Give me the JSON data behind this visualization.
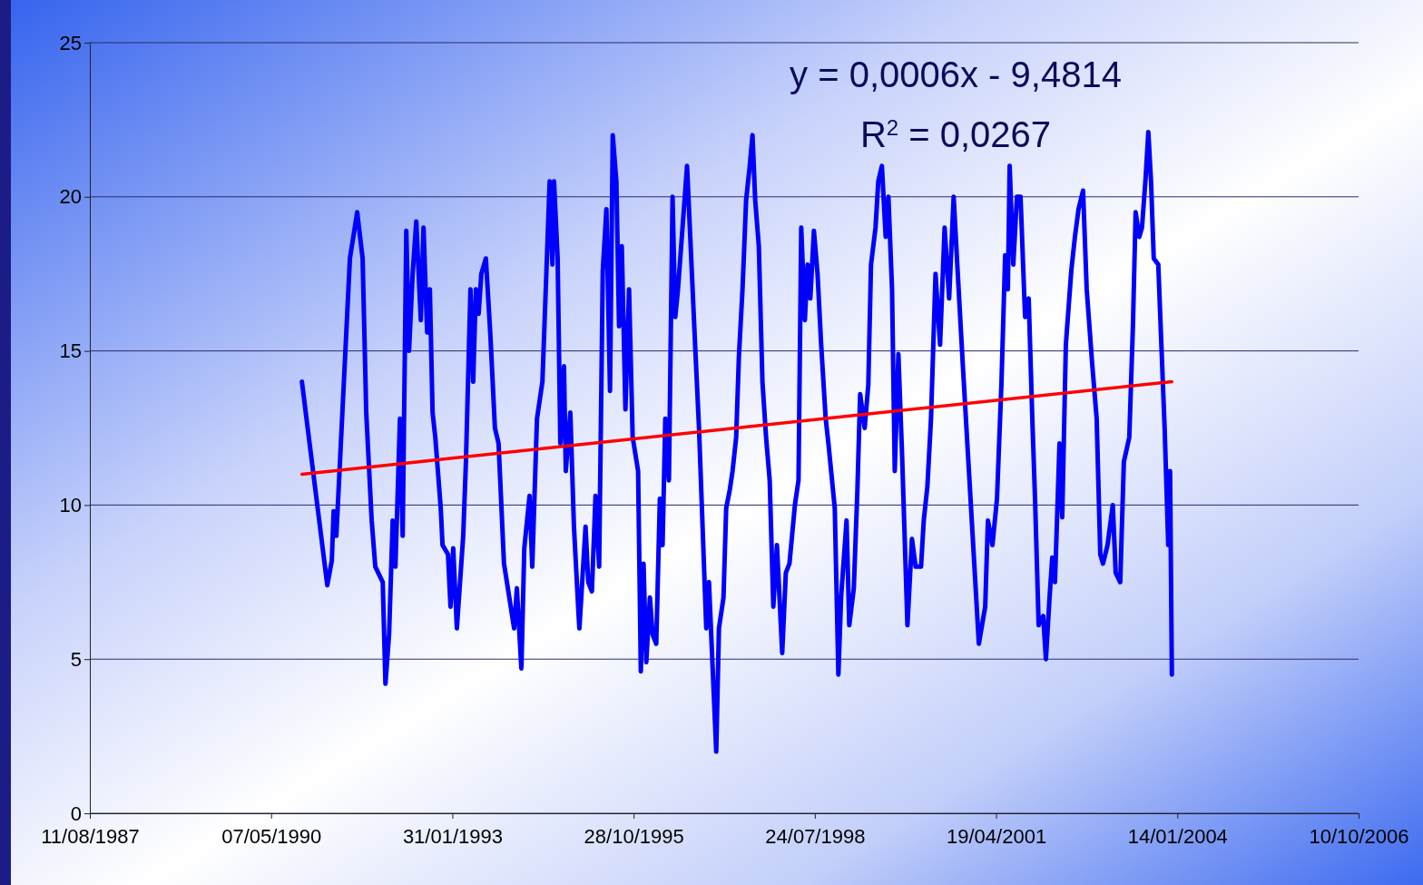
{
  "chart_data": {
    "type": "line",
    "xlim": [
      "1987-08-11",
      "2006-10-10"
    ],
    "xticks": [
      {
        "value": "1987-08-11",
        "label": "11/08/1987"
      },
      {
        "value": "1990-05-07",
        "label": "07/05/1990"
      },
      {
        "value": "1993-01-31",
        "label": "31/01/1993"
      },
      {
        "value": "1995-10-28",
        "label": "28/10/1995"
      },
      {
        "value": "1998-07-24",
        "label": "24/07/1998"
      },
      {
        "value": "2001-04-19",
        "label": "19/04/2001"
      },
      {
        "value": "2004-01-14",
        "label": "14/01/2004"
      },
      {
        "value": "2006-10-10",
        "label": "10/10/2006"
      }
    ],
    "ylim": [
      0,
      25
    ],
    "yticks": [
      0,
      5,
      10,
      15,
      20,
      25
    ],
    "grid": "y",
    "line_style": "solid",
    "marker": "none",
    "annotations": [
      "y = 0,0006x - 9,4814",
      "R$^{2}$ = 0,0267"
    ],
    "series": [
      {
        "color": "#0000ff",
        "x": [
          "1990-10-24",
          "1991-03-13",
          "1991-04-07",
          "1991-04-17",
          "1991-05-02",
          "1991-07-16",
          "1991-08-25",
          "1991-09-24",
          "1991-10-14",
          "1991-11-13",
          "1991-12-03",
          "1992-01-13",
          "1992-01-28",
          "1992-02-17",
          "1992-03-08",
          "1992-03-23",
          "1992-04-17",
          "1992-05-02",
          "1992-05-22",
          "1992-06-06",
          "1992-06-26",
          "1992-07-16",
          "1992-08-10",
          "1992-08-25",
          "1992-09-14",
          "1992-09-29",
          "1992-10-14",
          "1992-10-29",
          "1992-11-28",
          "1992-12-08",
          "1993-01-07",
          "1993-01-21",
          "1993-02-05",
          "1993-02-25",
          "1993-04-01",
          "1993-04-16",
          "1993-05-11",
          "1993-05-26",
          "1993-06-10",
          "1993-06-25",
          "1993-07-10",
          "1993-08-04",
          "1993-08-29",
          "1993-09-23",
          "1993-10-13",
          "1993-11-12",
          "1994-01-07",
          "1994-01-22",
          "1994-02-16",
          "1994-03-04",
          "1994-04-02",
          "1994-04-17",
          "1994-05-13",
          "1994-06-12",
          "1994-07-22",
          "1994-08-06",
          "1994-08-15",
          "1994-09-04",
          "1994-09-19",
          "1994-10-09",
          "1994-10-19",
          "1994-11-13",
          "1994-12-03",
          "1994-12-28",
          "1995-01-02",
          "1995-02-05",
          "1995-02-20",
          "1995-03-12",
          "1995-04-01",
          "1995-04-21",
          "1995-05-11",
          "1995-05-31",
          "1995-06-20",
          "1995-07-05",
          "1995-07-25",
          "1995-08-09",
          "1995-08-24",
          "1995-09-13",
          "1995-10-03",
          "1995-10-23",
          "1995-11-22",
          "1995-12-07",
          "1995-12-22",
          "1996-01-06",
          "1996-01-26",
          "1996-02-10",
          "1996-03-01",
          "1996-03-21",
          "1996-04-05",
          "1996-04-20",
          "1996-05-10",
          "1996-05-30",
          "1996-06-14",
          "1996-06-29",
          "1996-08-18",
          "1996-10-03",
          "1996-10-23",
          "1996-12-02",
          "1996-12-17",
          "1997-01-26",
          "1997-02-10",
          "1997-03-07",
          "1997-03-22",
          "1997-04-11",
          "1997-04-26",
          "1997-05-16",
          "1997-05-31",
          "1997-06-20",
          "1997-07-10",
          "1997-07-30",
          "1997-08-14",
          "1997-08-29",
          "1997-09-18",
          "1997-10-08",
          "1997-10-28",
          "1997-11-17",
          "1997-12-07",
          "1997-12-27",
          "1998-01-25",
          "1998-02-14",
          "1998-03-06",
          "1998-04-05",
          "1998-04-25",
          "1998-05-10",
          "1998-05-30",
          "1998-06-14",
          "1998-06-29",
          "1998-07-19",
          "1998-08-08",
          "1998-08-28",
          "1998-09-22",
          "1998-10-07",
          "1998-11-11",
          "1998-12-01",
          "1998-12-16",
          "1999-01-15",
          "1999-01-30",
          "1999-02-24",
          "1999-03-16",
          "1999-03-31",
          "1999-04-25",
          "1999-05-15",
          "1999-05-30",
          "1999-06-24",
          "1999-07-09",
          "1999-07-29",
          "1999-08-19",
          "1999-09-03",
          "1999-09-23",
          "1999-10-08",
          "1999-10-28",
          "1999-11-17",
          "1999-12-17",
          "2000-01-11",
          "2000-01-31",
          "2000-03-01",
          "2000-03-16",
          "2000-04-05",
          "2000-04-25",
          "2000-05-20",
          "2000-06-14",
          "2000-07-09",
          "2000-08-03",
          "2000-08-28",
          "2000-09-17",
          "2000-10-17",
          "2001-01-14",
          "2001-02-18",
          "2001-03-05",
          "2001-03-30",
          "2001-04-24",
          "2001-05-19",
          "2001-06-08",
          "2001-06-23",
          "2001-07-03",
          "2001-07-23",
          "2001-08-12",
          "2001-09-01",
          "2001-09-26",
          "2001-10-16",
          "2001-11-05",
          "2001-11-20",
          "2001-12-10",
          "2002-01-04",
          "2002-01-19",
          "2002-02-08",
          "2002-02-23",
          "2002-03-10",
          "2002-04-04",
          "2002-04-19",
          "2002-05-09",
          "2002-06-08",
          "2002-06-28",
          "2002-07-18",
          "2002-08-12",
          "2002-09-01",
          "2002-10-01",
          "2002-10-26",
          "2002-11-15",
          "2002-11-30",
          "2002-12-25",
          "2003-01-23",
          "2003-02-08",
          "2003-03-05",
          "2003-03-25",
          "2003-04-24",
          "2003-05-14",
          "2003-05-29",
          "2003-06-18",
          "2003-07-03",
          "2003-07-23",
          "2003-08-07",
          "2003-08-22",
          "2003-09-06",
          "2003-10-01",
          "2003-10-16",
          "2003-11-05",
          "2003-11-25",
          "2003-12-05",
          "2003-12-15"
        ],
        "values": [
          14.0,
          7.4,
          8.2,
          9.8,
          9.0,
          18.0,
          19.5,
          18.0,
          13.0,
          9.5,
          8.0,
          7.5,
          4.2,
          5.8,
          9.5,
          8.0,
          12.8,
          9.0,
          18.9,
          15.0,
          17.5,
          19.2,
          16.0,
          19.0,
          15.6,
          17.0,
          13.0,
          12.2,
          9.9,
          8.7,
          8.4,
          6.7,
          8.6,
          6.0,
          9.0,
          11.4,
          17.0,
          14.0,
          17.0,
          16.2,
          17.5,
          18.0,
          15.5,
          12.5,
          12.0,
          8.1,
          6.0,
          7.3,
          4.7,
          8.6,
          10.3,
          8.0,
          12.8,
          14.0,
          20.5,
          17.8,
          20.5,
          18.0,
          12.0,
          14.5,
          11.1,
          13.0,
          9.3,
          6.5,
          6.0,
          9.3,
          7.5,
          7.2,
          10.3,
          8.0,
          17.6,
          19.6,
          13.7,
          22.0,
          20.5,
          15.8,
          18.4,
          13.1,
          17.0,
          12.2,
          11.1,
          4.6,
          8.1,
          4.9,
          7.0,
          5.8,
          5.5,
          10.2,
          8.7,
          12.8,
          10.8,
          20.0,
          16.1,
          17.0,
          21.0,
          15.0,
          12.5,
          6.0,
          7.5,
          2.0,
          6.0,
          7.0,
          9.9,
          10.5,
          11.1,
          12.2,
          14.8,
          17.0,
          19.9,
          21.0,
          22.0,
          19.9,
          18.4,
          14.0,
          12.2,
          10.8,
          6.7,
          8.7,
          5.2,
          7.8,
          8.1,
          10.0,
          10.8,
          19.0,
          16.0,
          17.8,
          16.7,
          18.9,
          17.5,
          15.2,
          12.8,
          12.0,
          9.9,
          4.5,
          7.0,
          9.5,
          6.1,
          7.3,
          10.5,
          13.6,
          12.5,
          13.9,
          17.8,
          19.0,
          20.5,
          21.0,
          18.7,
          20.0,
          17.0,
          11.1,
          14.9,
          11.7,
          6.1,
          8.9,
          8.0,
          8.0,
          9.5,
          10.6,
          12.8,
          17.5,
          15.2,
          19.0,
          16.7,
          20.0,
          17.8,
          14.6,
          5.5,
          6.7,
          9.5,
          8.7,
          10.2,
          14.0,
          18.1,
          17.0,
          21.0,
          17.8,
          20.0,
          20.0,
          16.1,
          16.7,
          12.8,
          10.2,
          6.1,
          6.4,
          5.0,
          7.0,
          8.3,
          7.5,
          12.0,
          9.6,
          15.2,
          17.6,
          18.7,
          19.6,
          20.2,
          17.0,
          14.6,
          12.8,
          8.4,
          8.1,
          8.7,
          10.0,
          7.8,
          7.5,
          11.4,
          12.2,
          15.8,
          19.5,
          18.7,
          19.0,
          20.6,
          22.1,
          20.5,
          18.0,
          17.8,
          15.5,
          12.5,
          8.7,
          11.1,
          4.5
        ]
      },
      {
        "type": "line",
        "color": "#ff0000",
        "x": [
          "1990-10-24",
          "2003-12-15"
        ],
        "values": [
          11.0,
          14.0
        ]
      }
    ]
  }
}
